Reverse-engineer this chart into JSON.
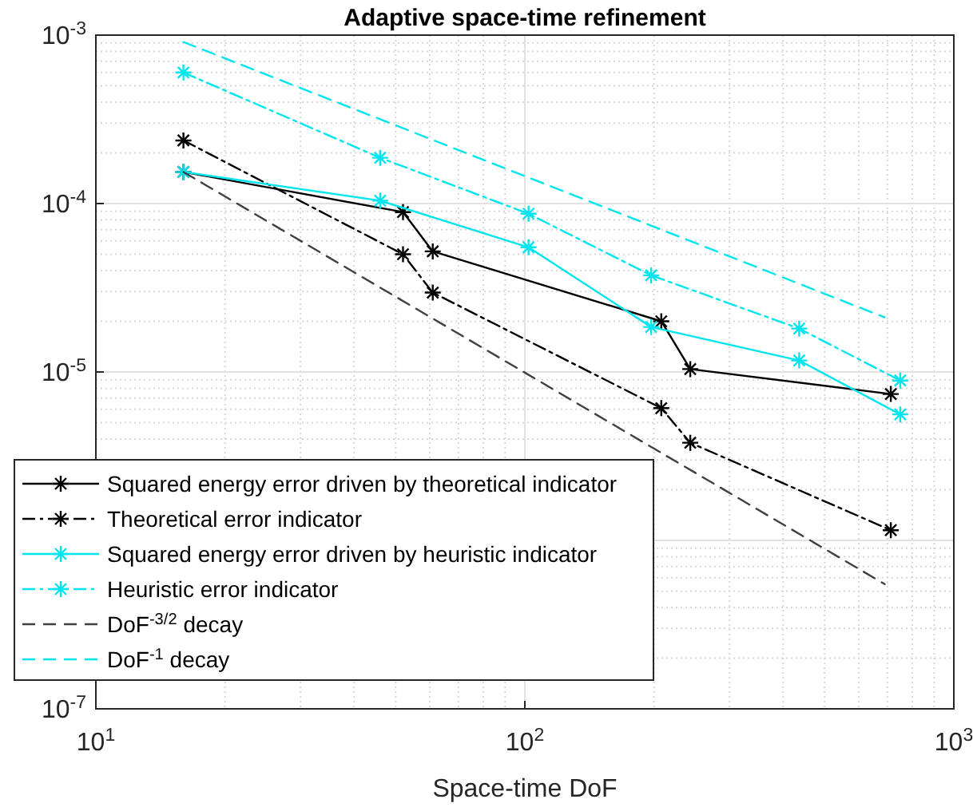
{
  "chart_data": {
    "type": "line",
    "title": "Adaptive space-time refinement",
    "xlabel": "Space-time DoF",
    "log": "xy",
    "grid": true,
    "legend": "bottom left",
    "xlim": [
      10,
      1000
    ],
    "xticks": [
      {
        "value": 10,
        "label": "10$^{1}$"
      },
      {
        "value": 100,
        "label": "10$^{2}$"
      },
      {
        "value": 1000,
        "label": "10$^{3}$"
      }
    ],
    "ylim": [
      1e-07,
      0.001
    ],
    "yticks": [
      {
        "value": 1e-07,
        "label": "10$^{-7}$"
      },
      {
        "value": 1e-06,
        "label": null
      },
      {
        "value": 1e-05,
        "label": "10$^{-5}$"
      },
      {
        "value": 0.0001,
        "label": "10$^{-4}$"
      },
      {
        "value": 0.001,
        "label": "10$^{-3}$"
      }
    ],
    "series": [
      {
        "name": "Squared energy error driven by theoretical indicator",
        "color": "#000000",
        "line_style": "solid",
        "marker": "cross",
        "x": [
          16,
          52,
          61,
          208,
          243,
          713
        ],
        "values": [
          0.000154,
          8.9e-05,
          5.2e-05,
          2e-05,
          1.04e-05,
          7.4e-06
        ]
      },
      {
        "name": "Theoretical error indicator",
        "color": "#000000",
        "line_style": "dashdot",
        "marker": "cross",
        "x": [
          16,
          52,
          61,
          208,
          243,
          713
        ],
        "values": [
          0.000237,
          5e-05,
          2.96e-05,
          6.1e-06,
          3.8e-06,
          1.15e-06
        ]
      },
      {
        "name": "Squared energy error driven by heuristic indicator",
        "color": "#00e5ee",
        "line_style": "solid",
        "marker": "cross",
        "x": [
          16,
          46,
          102,
          197,
          436,
          750
        ],
        "values": [
          0.000154,
          0.000104,
          5.5e-05,
          1.85e-05,
          1.17e-05,
          5.6e-06
        ]
      },
      {
        "name": "Heuristic error indicator",
        "color": "#00e5ee",
        "line_style": "dashdot",
        "marker": "cross",
        "x": [
          16,
          46,
          102,
          197,
          436,
          750
        ],
        "values": [
          0.0006,
          0.000187,
          8.7e-05,
          3.75e-05,
          1.81e-05,
          8.9e-06
        ]
      },
      {
        "name": "DoF$^{-3/2}$ decay",
        "color": "#404040",
        "line_style": "dashed",
        "marker": "none",
        "x": [
          16,
          690
        ],
        "values": [
          0.000154,
          5.5e-07
        ]
      },
      {
        "name": "DoF$^{-1}$ decay",
        "color": "#00e5ee",
        "line_style": "dashed",
        "marker": "none",
        "x": [
          16,
          690
        ],
        "values": [
          0.00091,
          2.11e-05
        ]
      }
    ]
  }
}
